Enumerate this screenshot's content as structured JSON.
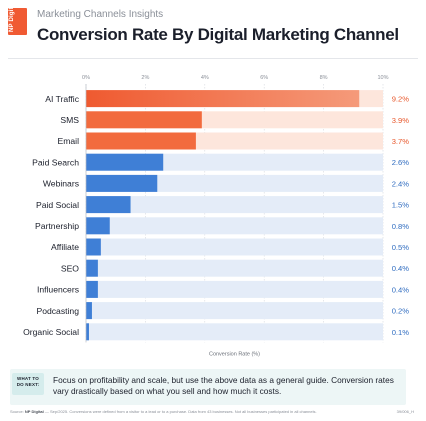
{
  "brand": {
    "logo_text": "NP Digital"
  },
  "header": {
    "kicker": "Marketing Channels Insights",
    "title": "Conversion Rate By Digital Marketing Channel"
  },
  "colors": {
    "top3_bar": "#f26b3e",
    "top3_track": "#fde6dc",
    "top3_value": "#e8582c",
    "other_bar": "#3f7fd6",
    "other_track": "#e4ecf8",
    "other_value": "#2f6cc0",
    "grid": "#d4d8de"
  },
  "chart_data": {
    "type": "bar",
    "orientation": "horizontal",
    "categories": [
      "AI Traffic",
      "SMS",
      "Email",
      "Paid Search",
      "Webinars",
      "Paid Social",
      "Partnership",
      "Affiliate",
      "SEO",
      "Influencers",
      "Podcasting",
      "Organic Social"
    ],
    "values": [
      9.2,
      3.9,
      3.7,
      2.6,
      2.4,
      1.5,
      0.8,
      0.5,
      0.4,
      0.4,
      0.2,
      0.1
    ],
    "value_labels": [
      "9.2%",
      "3.9%",
      "3.7%",
      "2.6%",
      "2.4%",
      "1.5%",
      "0.8%",
      "0.5%",
      "0.4%",
      "0.4%",
      "0.2%",
      "0.1%"
    ],
    "highlighted_count": 3,
    "xlabel": "Conversion Rate (%)",
    "ylabel": "",
    "xlim": [
      0,
      10
    ],
    "xticks": [
      0,
      2,
      4,
      6,
      8,
      10
    ],
    "xtick_labels": [
      "0%",
      "2%",
      "4%",
      "6%",
      "8%",
      "10%"
    ],
    "xtick_position": "top",
    "grid": true
  },
  "next": {
    "tag": "WHAT TO DO NEXT:",
    "text": "Focus on profitability and scale, but use the above data as a general guide. Conversion rates vary drastically based on what you sell and how much it costs."
  },
  "footer": {
    "source_label": "Source:",
    "source_org": "NP Digital",
    "source_date": "— Sep/2025.",
    "source_text": "Conversions were defined from a visitor to a lead or to a purchase. Data from 43 businesses. Not all businesses participated in all channels.",
    "code": "39/006_H"
  }
}
